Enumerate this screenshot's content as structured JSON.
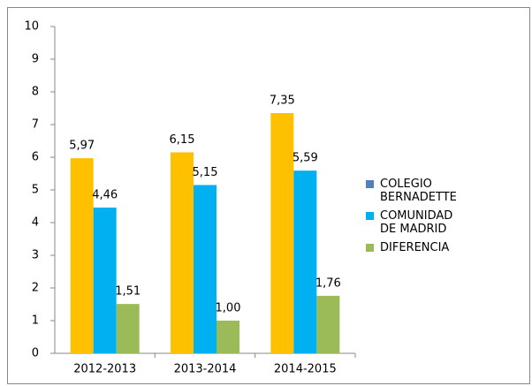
{
  "chart_data": {
    "type": "bar",
    "categories": [
      "2012-2013",
      "2013-2014",
      "2014-2015"
    ],
    "series": [
      {
        "name": "COLEGIO BERNADETTE",
        "color": "#ffc000",
        "legend_color": "#4f81bd",
        "values": [
          5.97,
          6.15,
          7.35
        ],
        "value_labels": [
          "5,97",
          "6,15",
          "7,35"
        ]
      },
      {
        "name": "COMUNIDAD DE MADRID",
        "color": "#00b0f0",
        "legend_color": "#00b0f0",
        "values": [
          4.46,
          5.15,
          5.59
        ],
        "value_labels": [
          "4,46",
          "5,15",
          "5,59"
        ]
      },
      {
        "name": "DIFERENCIA",
        "color": "#9bbb59",
        "legend_color": "#9bbb59",
        "values": [
          1.51,
          1.0,
          1.76
        ],
        "value_labels": [
          "1,51",
          "1,00",
          "1,76"
        ]
      }
    ],
    "ylim": [
      0,
      10
    ],
    "yticks": [
      0,
      1,
      2,
      3,
      4,
      5,
      6,
      7,
      8,
      9,
      10
    ],
    "grid": false,
    "legend": "right"
  }
}
